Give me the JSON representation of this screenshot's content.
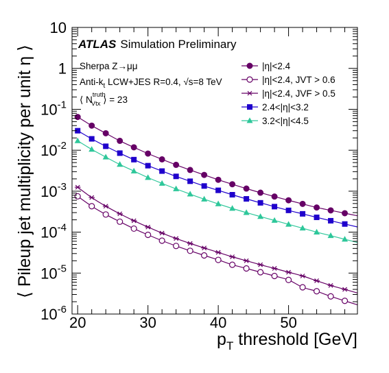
{
  "chart_data": {
    "type": "scatter",
    "title": "",
    "xlabel": "p_T threshold [GeV]",
    "ylabel": "⟨ Pileup jet multiplicity per unit η ⟩",
    "x_label_main": "p",
    "x_label_sub": "T",
    "x_label_rest": " threshold [GeV]",
    "xlim": [
      19.2,
      59.8
    ],
    "ylim": [
      1e-06,
      10
    ],
    "yscale": "log",
    "x_ticks": [
      20,
      30,
      40,
      50
    ],
    "x_tick_labels": [
      "20",
      "30",
      "40",
      "50"
    ],
    "y_tick_labels": [
      {
        "value": 1e-06,
        "base": "10",
        "exp": "-6"
      },
      {
        "value": 1e-05,
        "base": "10",
        "exp": "-5"
      },
      {
        "value": 0.0001,
        "base": "10",
        "exp": "-4"
      },
      {
        "value": 0.001,
        "base": "10",
        "exp": "-3"
      },
      {
        "value": 0.01,
        "base": "10",
        "exp": "-2"
      },
      {
        "value": 0.1,
        "base": "10",
        "exp": "-1"
      },
      {
        "value": 1,
        "base": "1",
        "exp": ""
      },
      {
        "value": 10,
        "base": "10",
        "exp": ""
      }
    ],
    "grid": false,
    "legend_position": "top-right",
    "annotations": {
      "atlas": "ATLAS",
      "atlas_rest": "Simulation Preliminary",
      "line1": "Sherpa Z→μμ",
      "line2_a": "Anti-k",
      "line2_sub": "t",
      "line2_b": " LCW+JES R=0.4, √s=8 TeV",
      "line3_a": "⟨ N",
      "line3_sup": "truth",
      "line3_sub": "Vtx",
      "line3_b": " ⟩ = 23"
    },
    "x": [
      20,
      22,
      24,
      26,
      28,
      30,
      32,
      34,
      36,
      38,
      40,
      42,
      44,
      46,
      48,
      50,
      52,
      54,
      56,
      58
    ],
    "series": [
      {
        "name": "|η|<2.4",
        "marker": "filled-circle",
        "color": "#660066",
        "values": [
          0.065,
          0.04,
          0.026,
          0.017,
          0.0118,
          0.0083,
          0.006,
          0.0044,
          0.0033,
          0.0025,
          0.0019,
          0.00148,
          0.00116,
          0.00092,
          0.00074,
          0.0006,
          0.00049,
          0.0004,
          0.00034,
          0.00029
        ]
      },
      {
        "name": "|η|<2.4, JVT > 0.6",
        "marker": "open-circle",
        "color": "#660066",
        "values": [
          0.00075,
          0.00043,
          0.00027,
          0.00018,
          0.000122,
          8.6e-05,
          6.2e-05,
          4.6e-05,
          3.5e-05,
          2.7e-05,
          2.1e-05,
          1.6e-05,
          1.3e-05,
          1.05e-05,
          8.5e-06,
          6.8e-06,
          4.5e-06,
          3.6e-06,
          2.7e-06,
          2.1e-06
        ]
      },
      {
        "name": "|η|<2.4, JVF > 0.5",
        "marker": "star",
        "color": "#660066",
        "values": [
          0.00125,
          0.0007,
          0.00043,
          0.00028,
          0.00019,
          0.000133,
          9.5e-05,
          7e-05,
          5.3e-05,
          4.1e-05,
          3.2e-05,
          2.5e-05,
          2e-05,
          1.6e-05,
          1.3e-05,
          1.05e-05,
          8.5e-06,
          6.5e-06,
          5e-06,
          4e-06
        ]
      },
      {
        "name": "2.4<|η|<3.2",
        "marker": "filled-square",
        "color": "#1f00cc",
        "values": [
          0.03,
          0.019,
          0.0125,
          0.0085,
          0.0059,
          0.0042,
          0.0031,
          0.0023,
          0.00175,
          0.00134,
          0.00105,
          0.00082,
          0.00065,
          0.00052,
          0.00042,
          0.00034,
          0.00028,
          0.00023,
          0.00019,
          0.000158
        ]
      },
      {
        "name": "3.2<|η|<4.5",
        "marker": "filled-triangle",
        "color": "#2ec79a",
        "values": [
          0.017,
          0.0105,
          0.0068,
          0.0045,
          0.0031,
          0.00215,
          0.00155,
          0.00114,
          0.00085,
          0.00064,
          0.00049,
          0.00038,
          0.0003,
          0.00024,
          0.000193,
          0.000155,
          0.000125,
          0.0001,
          8.2e-05,
          6.7e-05
        ]
      }
    ]
  }
}
